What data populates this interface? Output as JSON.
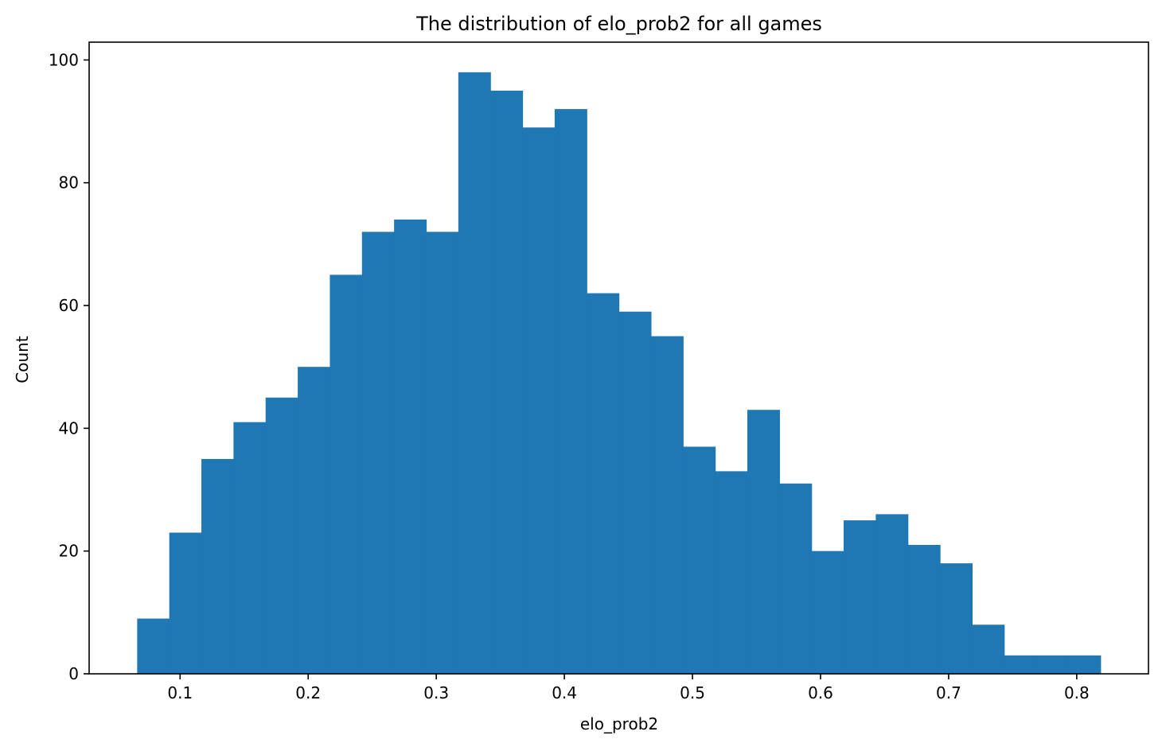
{
  "chart_data": {
    "type": "bar",
    "title": "The distribution of elo_prob2 for all games",
    "xlabel": "elo_prob2",
    "ylabel": "Count",
    "bar_color": "#1f77b4",
    "bin_start": 0.0665,
    "bin_width": 0.02507,
    "values": [
      9,
      23,
      35,
      41,
      45,
      50,
      65,
      72,
      74,
      72,
      98,
      95,
      89,
      92,
      62,
      59,
      55,
      37,
      33,
      43,
      31,
      20,
      25,
      26,
      21,
      18,
      8,
      3,
      3,
      3
    ],
    "xlim": [
      0.029,
      0.856
    ],
    "ylim": [
      0,
      102.9
    ],
    "xticks": [
      0.1,
      0.2,
      0.3,
      0.4,
      0.5,
      0.6,
      0.7,
      0.8
    ],
    "xtick_labels": [
      "0.1",
      "0.2",
      "0.3",
      "0.4",
      "0.5",
      "0.6",
      "0.7",
      "0.8"
    ],
    "yticks": [
      0,
      20,
      40,
      60,
      80,
      100
    ],
    "ytick_labels": [
      "0",
      "20",
      "40",
      "60",
      "80",
      "100"
    ],
    "grid": false,
    "legend": "none"
  }
}
